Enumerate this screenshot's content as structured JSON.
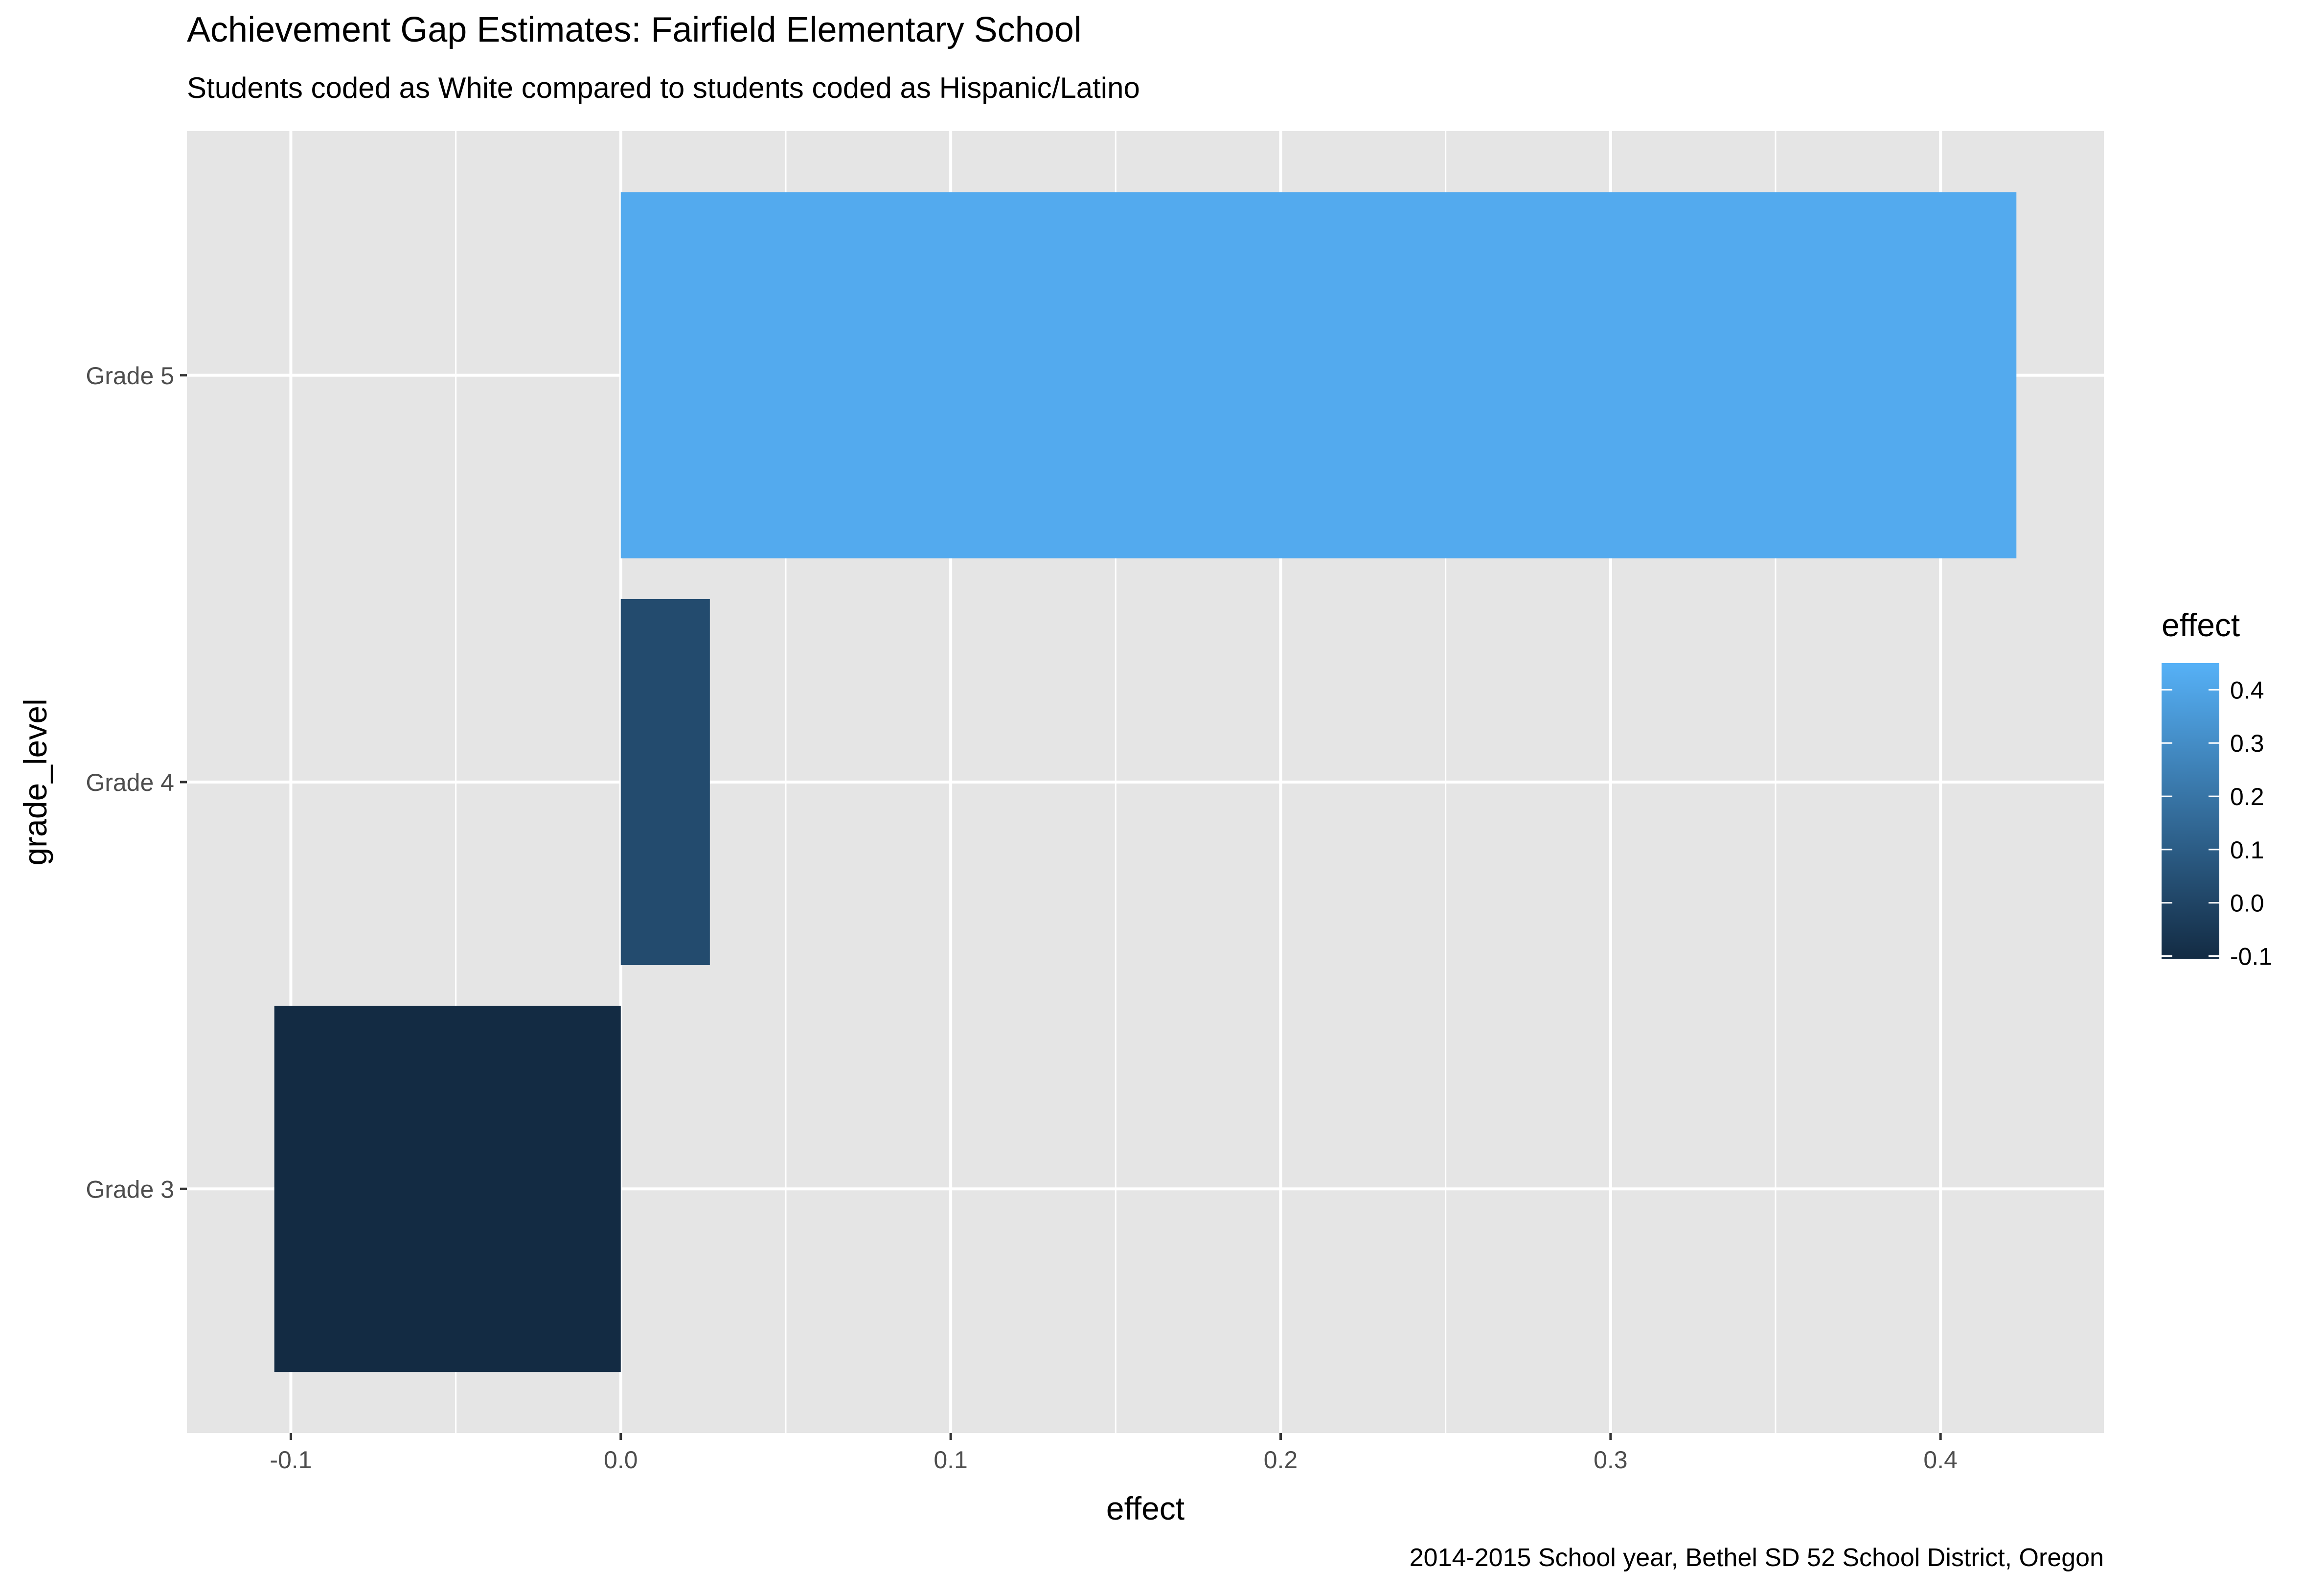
{
  "chart_data": {
    "type": "bar",
    "orientation": "horizontal",
    "title": "Achievement Gap Estimates: Fairfield Elementary School",
    "subtitle": "Students coded as White compared to students coded as Hispanic/Latino",
    "caption": "2014-2015 School year, Bethel SD 52 School District, Oregon",
    "xlabel": "effect",
    "ylabel": "grade_level",
    "categories": [
      "Grade 3",
      "Grade 4",
      "Grade 5"
    ],
    "values": [
      -0.105,
      0.027,
      0.423
    ],
    "xlim": [
      -0.1315,
      0.4495
    ],
    "x_ticks": [
      -0.1,
      0.0,
      0.1,
      0.2,
      0.3,
      0.4
    ],
    "x_tick_labels": [
      "-0.1",
      "0.0",
      "0.1",
      "0.2",
      "0.3",
      "0.4"
    ],
    "grid": true,
    "legend": {
      "title": "effect",
      "placement": "right",
      "type": "colorbar",
      "range": [
        -0.105,
        0.45
      ],
      "ticks": [
        0.4,
        0.3,
        0.2,
        0.1,
        0.0,
        -0.1
      ],
      "tick_labels": [
        "0.4",
        "0.3",
        "0.2",
        "0.1",
        "0.0",
        "-0.1"
      ],
      "low_color": "#132B43",
      "high_color": "#56B1F7"
    },
    "colors": {
      "panel_background": "#E5E5E5",
      "grid": "#FFFFFF",
      "text": "#000000",
      "tick_text": "#4D4D4D"
    }
  }
}
